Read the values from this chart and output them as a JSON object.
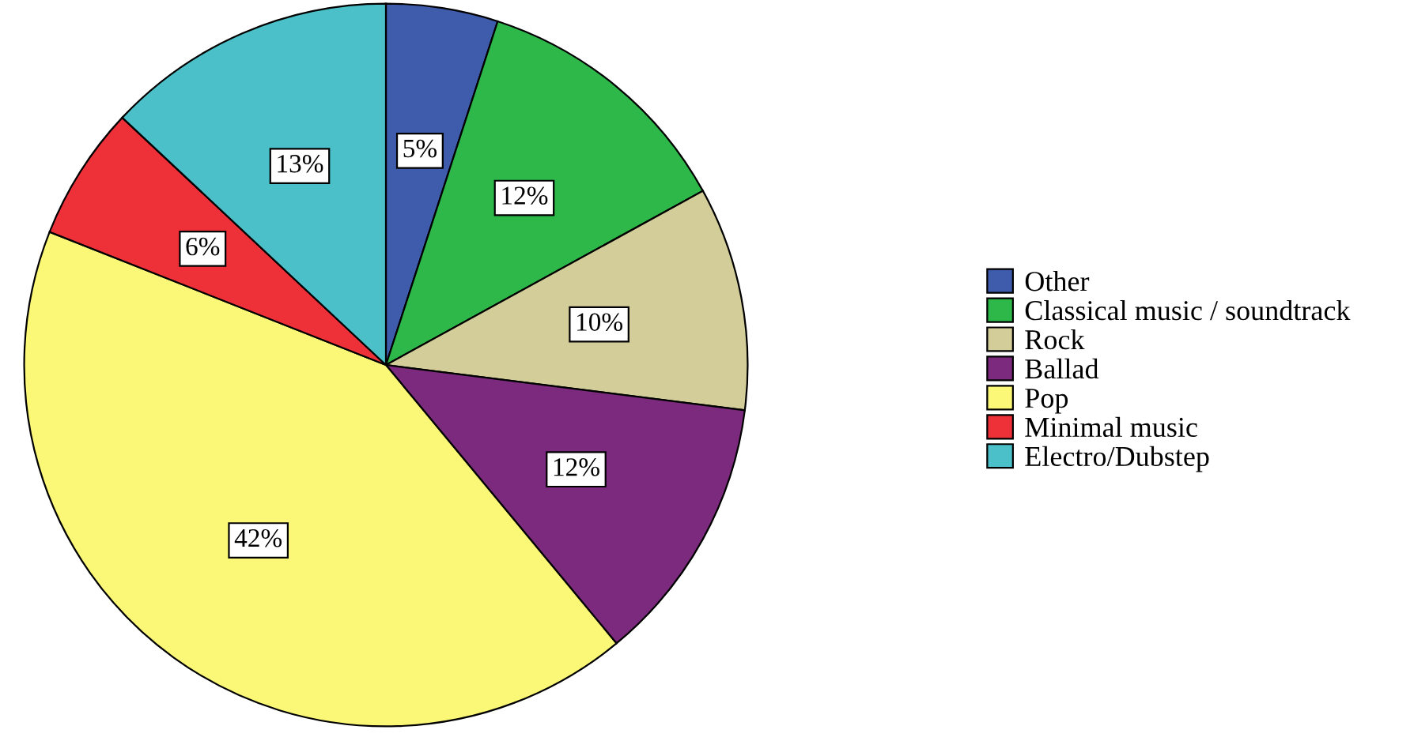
{
  "chart_data": {
    "type": "pie",
    "categories": [
      "Other",
      "Classical music / soundtrack",
      "Rock",
      "Ballad",
      "Pop",
      "Minimal music",
      "Electro/Dubstep"
    ],
    "values": [
      5,
      12,
      10,
      12,
      42,
      6,
      13
    ],
    "colors": [
      "#3f5bab",
      "#2eb84a",
      "#d3cd9a",
      "#7b2a7e",
      "#fbf777",
      "#ee3039",
      "#4bc0c8"
    ],
    "value_labels": [
      "5%",
      "12%",
      "10%",
      "12%",
      "42%",
      "6%",
      "13%"
    ],
    "legend": "right"
  }
}
